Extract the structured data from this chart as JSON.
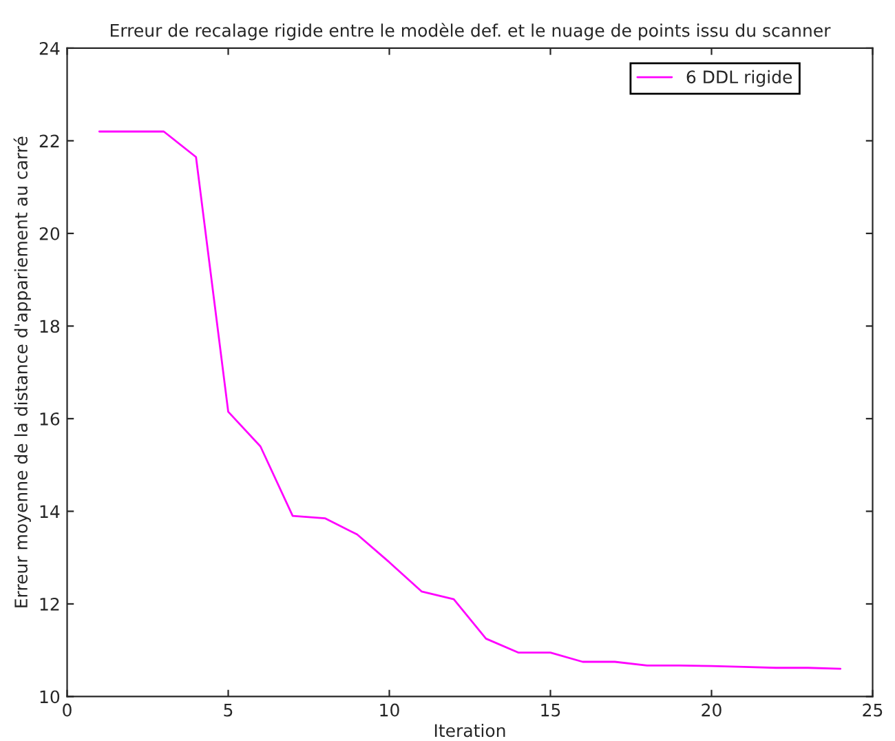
{
  "chart_data": {
    "type": "line",
    "title": "Erreur de recalage rigide entre le modèle def. et le nuage de points issu du scanner",
    "xlabel": "Iteration",
    "ylabel": "Erreur moyenne de la distance d'appariement au carré",
    "x": [
      1,
      2,
      3,
      4,
      5,
      6,
      7,
      8,
      9,
      10,
      11,
      12,
      13,
      14,
      15,
      16,
      17,
      18,
      19,
      20,
      21,
      22,
      23,
      24
    ],
    "series": [
      {
        "name": "6 DDL rigide",
        "color": "#ff00ff",
        "values": [
          22.2,
          22.2,
          22.2,
          21.65,
          16.15,
          15.4,
          13.9,
          13.85,
          13.5,
          12.9,
          12.27,
          12.1,
          11.25,
          10.95,
          10.95,
          10.75,
          10.75,
          10.67,
          10.67,
          10.66,
          10.64,
          10.62,
          10.62,
          10.6
        ]
      }
    ],
    "xlim": [
      0,
      25
    ],
    "xticks": [
      0,
      5,
      10,
      15,
      20,
      25
    ],
    "ylim": [
      10,
      24
    ],
    "yticks": [
      10,
      12,
      14,
      16,
      18,
      20,
      22,
      24
    ],
    "grid": false,
    "legend": "top right",
    "marker": "none",
    "line_style": "solid"
  }
}
